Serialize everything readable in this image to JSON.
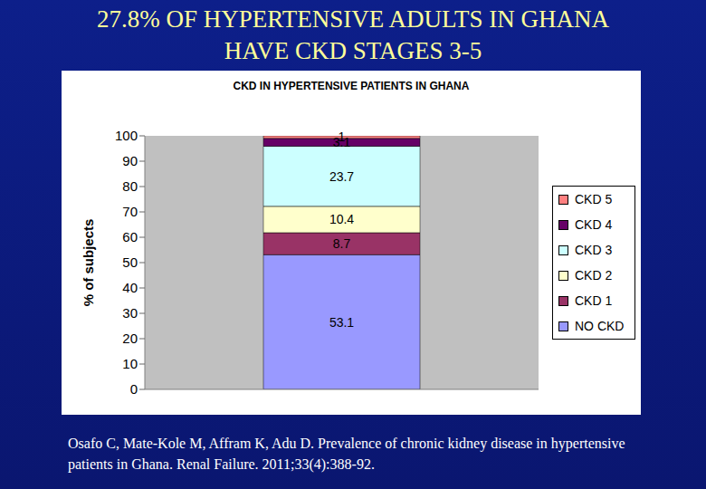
{
  "slide_title": "27.8% OF HYPERTENSIVE ADULTS IN GHANA HAVE CKD STAGES 3-5",
  "citation": "Osafo C, Mate-Kole M, Affram K, Adu D. Prevalence of chronic kidney disease in hypertensive patients in Ghana. Renal Failure. 2011;33(4):388-92.",
  "chart_data": {
    "type": "bar",
    "title": "CKD IN HYPERTENSIVE PATIENTS IN GHANA",
    "y_label": "% of subjects",
    "categories": [
      null
    ],
    "series": [
      {
        "name": "NO CKD",
        "color": "#9999ff",
        "values": [
          53.1
        ]
      },
      {
        "name": "CKD 1",
        "color": "#993366",
        "values": [
          8.7
        ]
      },
      {
        "name": "CKD 2",
        "color": "#ffffcc",
        "values": [
          10.4
        ]
      },
      {
        "name": "CKD 3",
        "color": "#ccffff",
        "values": [
          23.7
        ]
      },
      {
        "name": "CKD 4",
        "color": "#660066",
        "values": [
          3.1
        ]
      },
      {
        "name": "CKD 5",
        "color": "#ff8080",
        "values": [
          1
        ]
      }
    ],
    "stacked": true,
    "data_labels": true,
    "legend": "right",
    "grid": false,
    "ylim": [
      0,
      100
    ],
    "yticks": [
      0,
      10,
      20,
      30,
      40,
      50,
      60,
      70,
      80,
      90,
      100
    ]
  }
}
